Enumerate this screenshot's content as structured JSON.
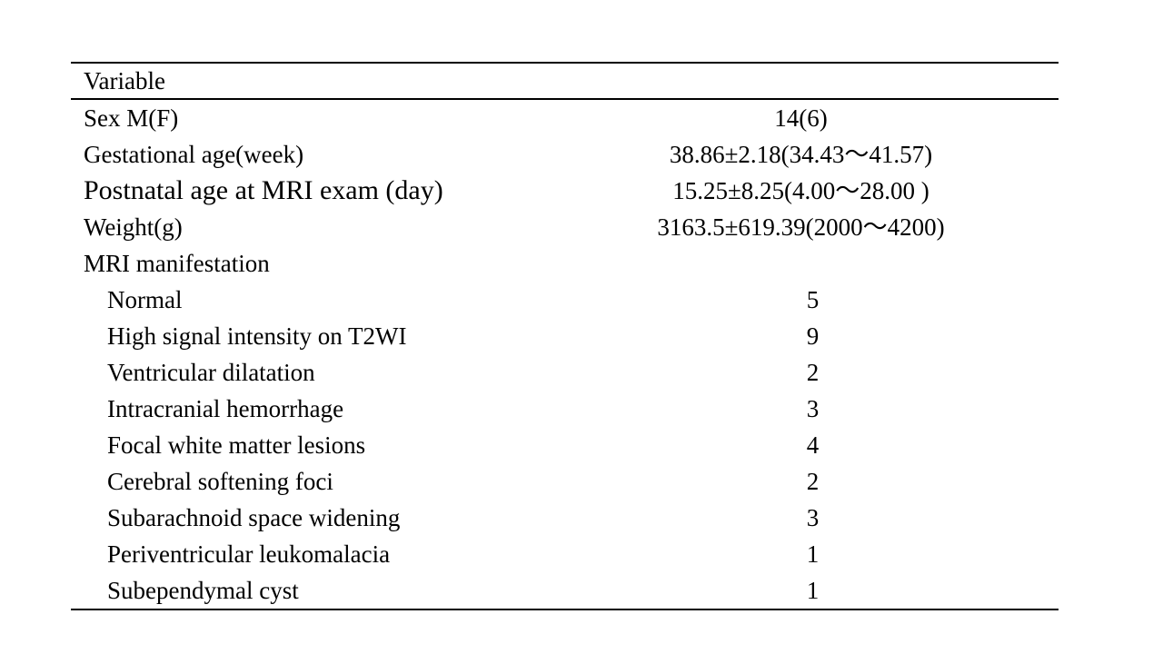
{
  "table": {
    "header": {
      "variable_label": "Variable",
      "value_label": ""
    },
    "rows": [
      {
        "label": "Sex M(F)",
        "value": "14(6)",
        "indent": false,
        "large": false
      },
      {
        "label": "Gestational age(week)",
        "value": "38.86±2.18(34.43～41.57)",
        "indent": false,
        "large": false
      },
      {
        "label": "Postnatal age at MRI exam (day)",
        "value": "15.25±8.25(4.00～28.00 )",
        "indent": false,
        "large": true
      },
      {
        "label": "Weight(g)",
        "value": "3163.5±619.39(2000～4200)",
        "indent": false,
        "large": false
      },
      {
        "label": "MRI manifestation",
        "value": "",
        "indent": false,
        "large": false
      },
      {
        "label": "Normal",
        "value": "5",
        "indent": true,
        "large": false
      },
      {
        "label": "High signal intensity on T2WI",
        "value": "9",
        "indent": true,
        "large": false
      },
      {
        "label": "Ventricular dilatation",
        "value": "2",
        "indent": true,
        "large": false
      },
      {
        "label": "Intracranial hemorrhage",
        "value": "3",
        "indent": true,
        "large": false
      },
      {
        "label": "Focal white matter lesions",
        "value": "4",
        "indent": true,
        "large": false
      },
      {
        "label": "Cerebral softening foci",
        "value": "2",
        "indent": true,
        "large": false
      },
      {
        "label": "Subarachnoid space widening",
        "value": "3",
        "indent": true,
        "large": false
      },
      {
        "label": "Periventricular leukomalacia",
        "value": "1",
        "indent": true,
        "large": false
      },
      {
        "label": "Subependymal cyst",
        "value": "1",
        "indent": true,
        "large": false
      }
    ]
  }
}
